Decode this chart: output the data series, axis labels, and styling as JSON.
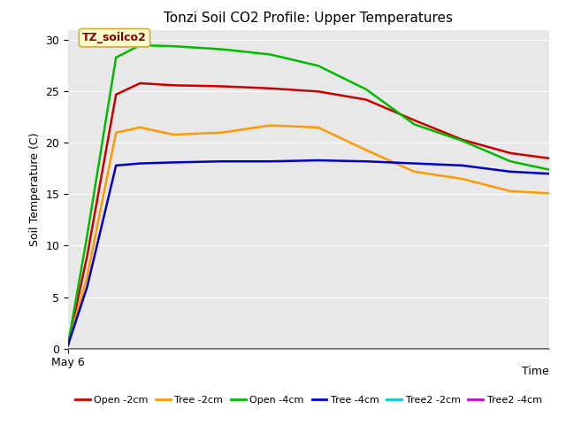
{
  "title": "Tonzi Soil CO2 Profile: Upper Temperatures",
  "ylabel": "Soil Temperature (C)",
  "xlabel": "Time",
  "x_start_label": "May 6",
  "ylim": [
    0,
    31
  ],
  "yticks": [
    0,
    5,
    10,
    15,
    20,
    25,
    30
  ],
  "fig_bg_color": "#ffffff",
  "plot_bg_color": "#e8e8e8",
  "label_box_text": "TZ_soilco2",
  "label_box_color": "#ffffcc",
  "label_box_border": "#ccaa44",
  "series": {
    "open_2cm": {
      "color": "#cc0000",
      "label": "Open -2cm",
      "x": [
        0,
        0.04,
        0.1,
        0.15,
        0.22,
        0.32,
        0.42,
        0.52,
        0.62,
        0.72,
        0.82,
        0.92,
        1.0
      ],
      "y": [
        0.3,
        9,
        24.7,
        25.8,
        25.6,
        25.5,
        25.3,
        25.0,
        24.2,
        22.2,
        20.3,
        19.0,
        18.5
      ]
    },
    "tree_2cm": {
      "color": "#ff9900",
      "label": "Tree -2cm",
      "x": [
        0,
        0.04,
        0.1,
        0.15,
        0.22,
        0.32,
        0.42,
        0.52,
        0.62,
        0.72,
        0.82,
        0.92,
        1.0
      ],
      "y": [
        0.3,
        7,
        21.0,
        21.5,
        20.8,
        21.0,
        21.7,
        21.5,
        19.3,
        17.2,
        16.5,
        15.3,
        15.1
      ]
    },
    "open_4cm": {
      "color": "#00bb00",
      "label": "Open -4cm",
      "x": [
        0,
        0.04,
        0.1,
        0.15,
        0.22,
        0.32,
        0.42,
        0.52,
        0.62,
        0.72,
        0.82,
        0.92,
        1.0
      ],
      "y": [
        0.3,
        11,
        28.3,
        29.5,
        29.4,
        29.1,
        28.6,
        27.5,
        25.2,
        21.8,
        20.2,
        18.2,
        17.4
      ]
    },
    "tree_4cm": {
      "color": "#0000cc",
      "label": "Tree -4cm",
      "x": [
        0,
        0.04,
        0.1,
        0.15,
        0.22,
        0.32,
        0.42,
        0.52,
        0.62,
        0.72,
        0.82,
        0.92,
        1.0
      ],
      "y": [
        0.3,
        6,
        17.8,
        18.0,
        18.1,
        18.2,
        18.2,
        18.3,
        18.2,
        18.0,
        17.8,
        17.2,
        17.0
      ]
    },
    "tree2_2cm": {
      "color": "#00cccc",
      "label": "Tree2 -2cm",
      "x": [
        0,
        1.0
      ],
      "y": [
        0.0,
        0.0
      ]
    },
    "tree2_4cm": {
      "color": "#cc00cc",
      "label": "Tree2 -4cm",
      "x": [
        0,
        1.0
      ],
      "y": [
        0.0,
        0.0
      ]
    }
  },
  "title_fontsize": 11,
  "axis_label_fontsize": 9,
  "tick_fontsize": 9,
  "legend_fontsize": 8
}
